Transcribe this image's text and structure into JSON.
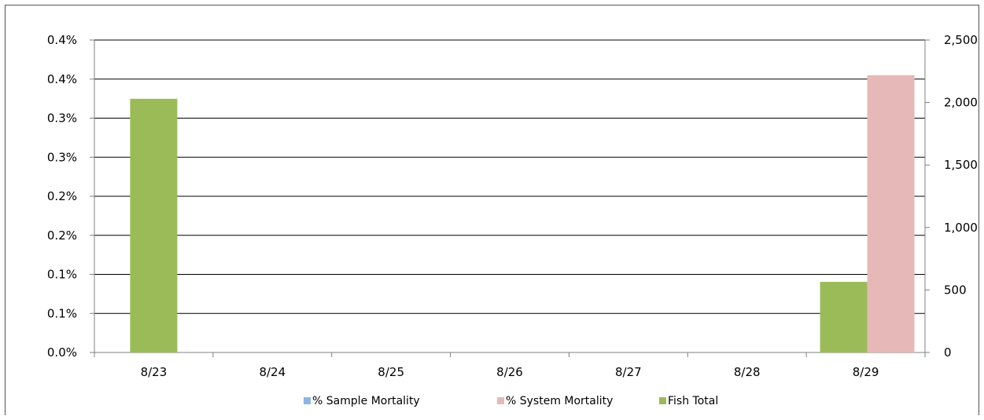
{
  "chart_data": {
    "type": "bar",
    "categories": [
      "8/23",
      "8/24",
      "8/25",
      "8/26",
      "8/27",
      "8/28",
      "8/29"
    ],
    "left_axis": {
      "ticks": [
        "0.0%",
        "0.1%",
        "0.1%",
        "0.2%",
        "0.2%",
        "0.3%",
        "0.3%",
        "0.4%",
        "0.4%"
      ],
      "ylim": [
        0,
        0.4
      ]
    },
    "right_axis": {
      "ticks": [
        "0",
        "500",
        "1,000",
        "1,500",
        "2,000",
        "2,500"
      ],
      "ylim": [
        0,
        2500
      ]
    },
    "series": [
      {
        "name": "% Sample Mortality",
        "axis": "left",
        "color": "#8eb4e3",
        "values": [
          0,
          0,
          0,
          0,
          0,
          0,
          0
        ]
      },
      {
        "name": "% System Mortality",
        "axis": "left",
        "color": "#e6b9b8",
        "values": [
          0,
          0,
          0,
          0,
          0,
          0,
          0.355
        ]
      },
      {
        "name": "Fish Total",
        "axis": "right",
        "color": "#9bbb59",
        "values": [
          2030,
          0,
          0,
          0,
          0,
          0,
          565
        ]
      }
    ],
    "grid": true,
    "legend": "bottom"
  }
}
